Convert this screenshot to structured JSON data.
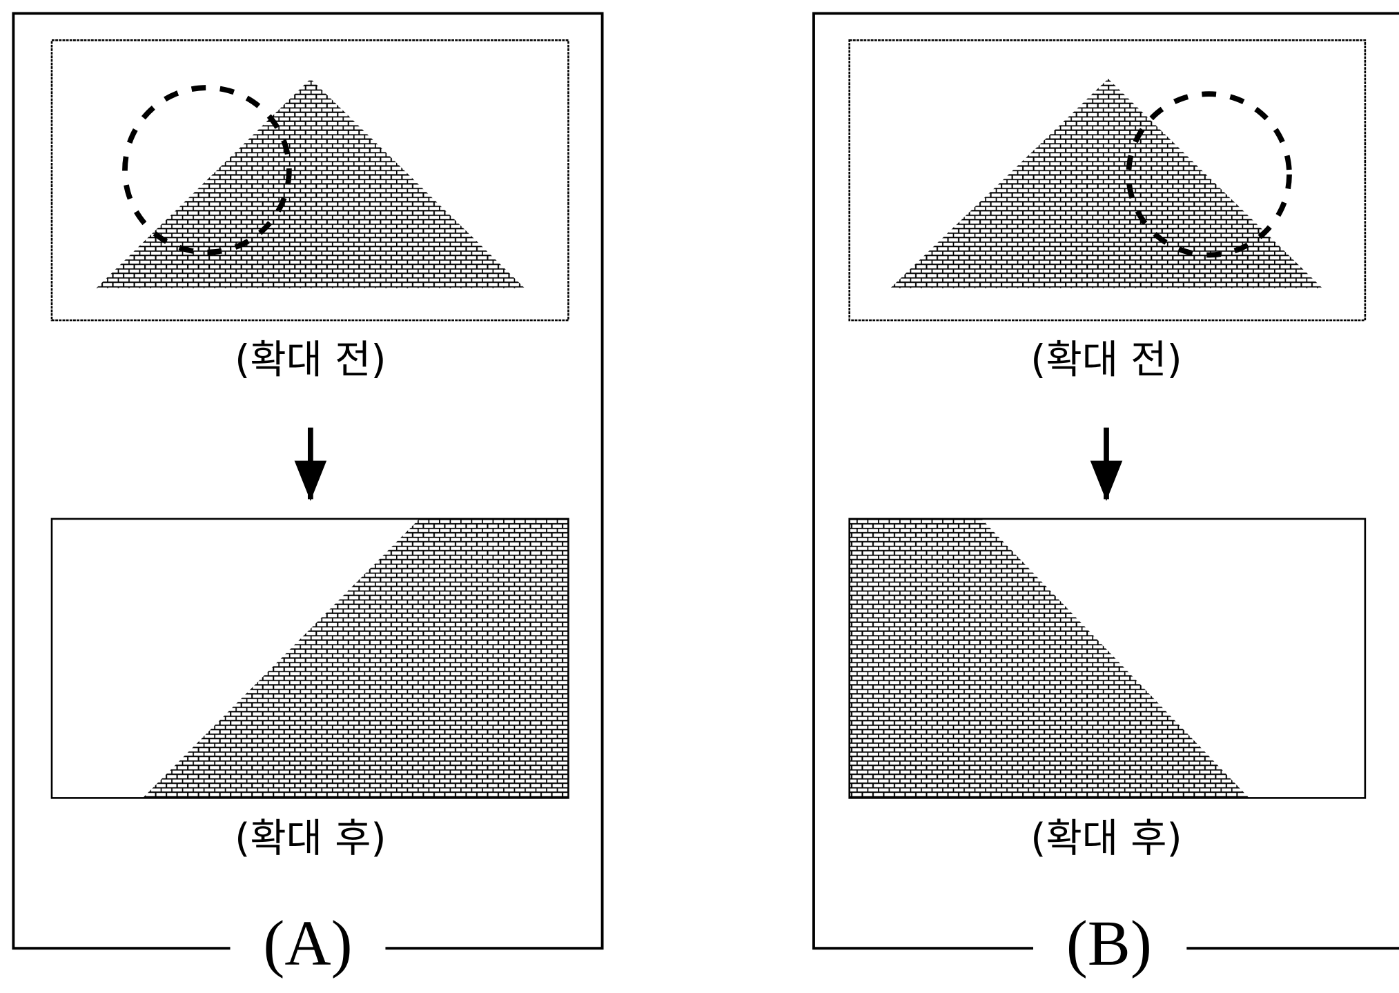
{
  "panels": [
    {
      "before_label": "(확대 전)",
      "after_label": "(확대 후)",
      "label": "(A)"
    },
    {
      "before_label": "(확대 전)",
      "after_label": "(확대 후)",
      "label": "(B)"
    }
  ]
}
